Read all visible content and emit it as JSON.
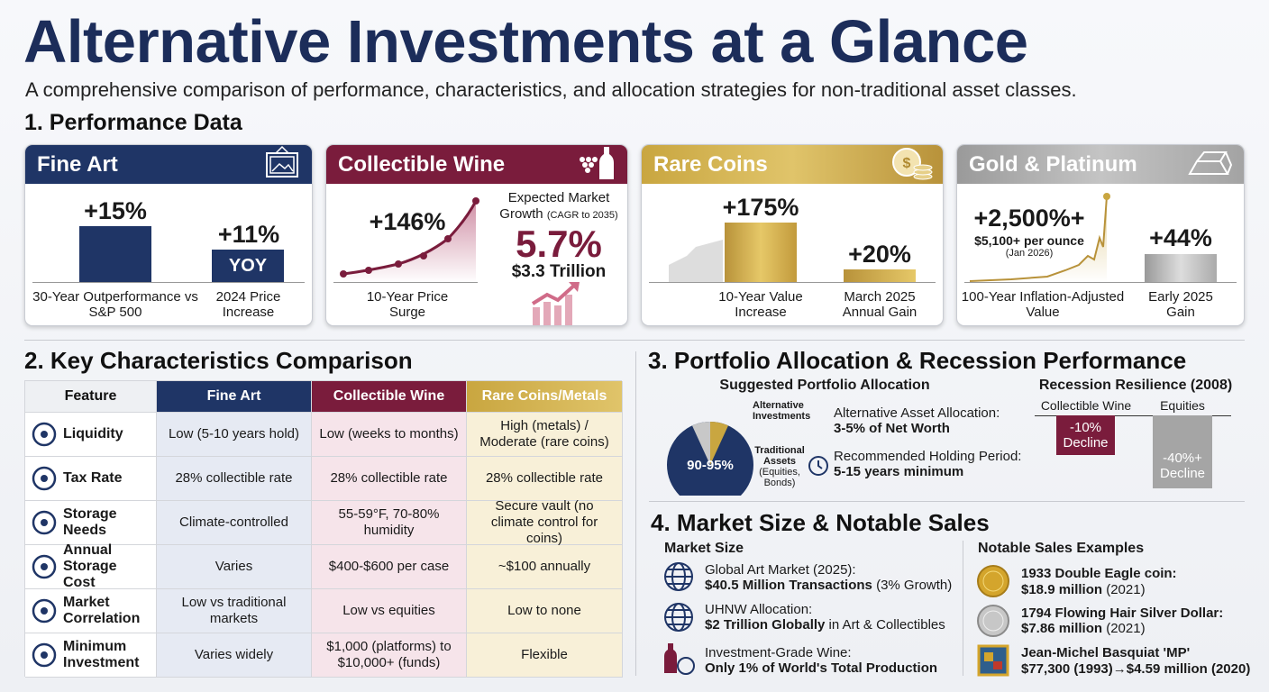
{
  "header": {
    "title": "Alternative Investments at a Glance",
    "subtitle": "A comprehensive comparison of performance, characteristics, and allocation strategies for non-traditional asset classes."
  },
  "performance": {
    "heading": "1. Performance Data",
    "cards": [
      {
        "title": "Fine Art",
        "items": [
          {
            "value": "+15%",
            "label": "30-Year Outperformance vs S&P 500"
          },
          {
            "value": "+11%",
            "tag": "YOY",
            "label": "2024 Price Increase"
          }
        ]
      },
      {
        "title": "Collectible Wine",
        "items": [
          {
            "value": "+146%",
            "label": "10-Year Price Surge"
          }
        ],
        "growth": {
          "label": "Expected Market Growth",
          "note": "(CAGR to 2035)",
          "value": "5.7%",
          "total": "$3.3 Trillion"
        }
      },
      {
        "title": "Rare Coins",
        "items": [
          {
            "value": "+175%",
            "label": "10-Year Value Increase"
          },
          {
            "value": "+20%",
            "label": "March 2025 Annual Gain"
          }
        ]
      },
      {
        "title": "Gold & Platinum",
        "items": [
          {
            "value": "+2,500%+",
            "note": "$5,100+ per ounce",
            "date": "(Jan 2026)",
            "label": "100-Year Inflation-Adjusted Value"
          },
          {
            "value": "+44%",
            "label": "Early 2025 Gain"
          }
        ]
      }
    ]
  },
  "characteristics": {
    "heading": "2. Key Characteristics Comparison",
    "columns": [
      "Feature",
      "Fine Art",
      "Collectible Wine",
      "Rare Coins/Metals"
    ],
    "rows": [
      [
        "Liquidity",
        "Low (5-10 years hold)",
        "Low (weeks to months)",
        "High (metals) / Moderate (rare coins)"
      ],
      [
        "Tax Rate",
        "28% collectible rate",
        "28% collectible rate",
        "28% collectible rate"
      ],
      [
        "Storage Needs",
        "Climate-controlled",
        "55-59°F, 70-80% humidity",
        "Secure vault (no climate control for coins)"
      ],
      [
        "Annual Storage Cost",
        "Varies",
        "$400-$600 per case",
        "~$100 annually"
      ],
      [
        "Market Correlation",
        "Low vs traditional markets",
        "Low vs equities",
        "Low to none"
      ],
      [
        "Minimum Investment",
        "Varies widely",
        "$1,000 (platforms) to $10,000+ (funds)",
        "Flexible"
      ]
    ]
  },
  "allocation": {
    "heading": "3. Portfolio Allocation & Recession Performance",
    "title": "Suggested Portfolio Allocation",
    "alt_label": "Alternative Investments",
    "trad_label": "Traditional Assets",
    "trad_note": "(Equities, Bonds)",
    "center": "90-95%",
    "facts": [
      {
        "label": "Alternative Asset Allocation:",
        "value": "3-5% of Net Worth"
      },
      {
        "label": "Recommended Holding Period:",
        "value": "5-15 years minimum"
      }
    ],
    "recession": {
      "title": "Recession Resilience (2008)",
      "items": [
        {
          "name": "Collectible Wine",
          "value": "-10%",
          "label": "Decline"
        },
        {
          "name": "Equities",
          "value": "-40%+",
          "label": "Decline"
        }
      ]
    }
  },
  "market": {
    "heading": "4. Market Size & Notable Sales",
    "size_title": "Market Size",
    "size_items": [
      {
        "label": "Global Art Market (2025):",
        "bold": "$40.5 Million Transactions",
        "rest": "(3% Growth)"
      },
      {
        "label": "UHNW Allocation:",
        "bold": "$2 Trillion Globally",
        "rest": "in Art & Collectibles"
      },
      {
        "label": "Investment-Grade Wine:",
        "bold": "Only 1% of World's Total Production"
      }
    ],
    "sales_title": "Notable Sales Examples",
    "sales": [
      {
        "name": "1933 Double Eagle coin:",
        "price": "$18.9 million",
        "year": "(2021)"
      },
      {
        "name": "1794 Flowing Hair Silver Dollar:",
        "price": "$7.86 million",
        "year": "(2021)"
      },
      {
        "name": "Jean-Michel Basquiat 'MP'",
        "price": "$77,300 (1993)→$4.59 million (2020)"
      }
    ]
  }
}
